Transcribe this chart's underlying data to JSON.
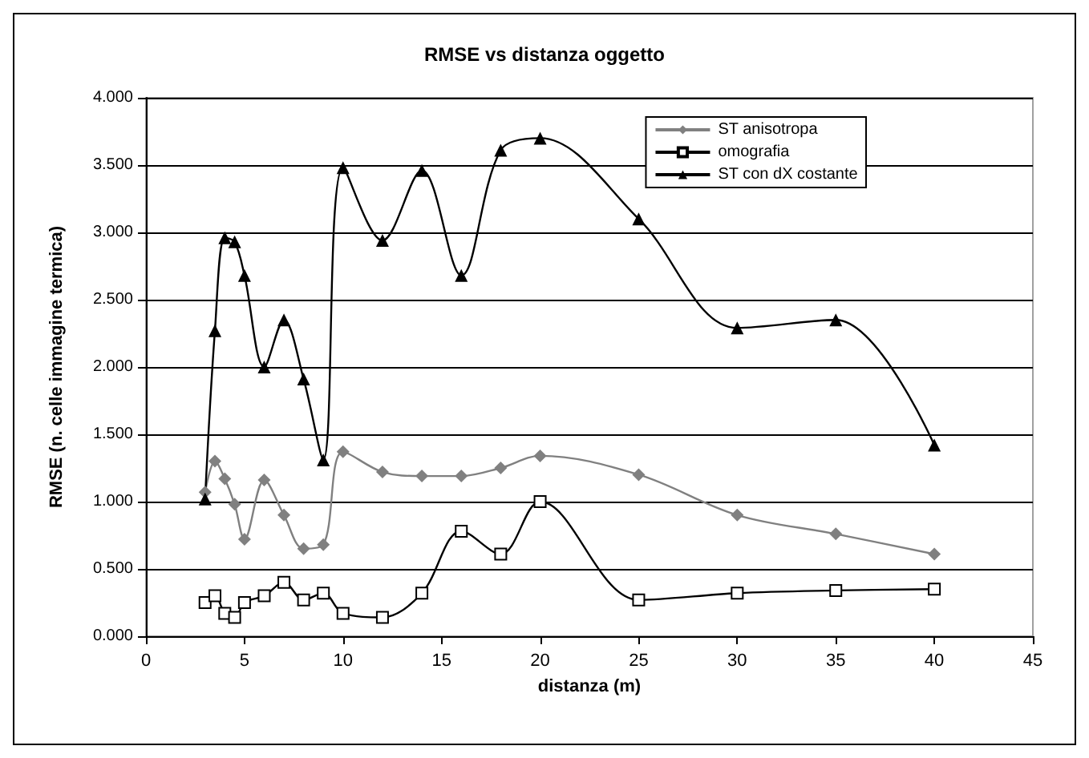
{
  "chart_data": {
    "type": "line",
    "title": "RMSE vs distanza oggetto",
    "xlabel": "distanza (m)",
    "ylabel": "RMSE (n. celle immagine termica)",
    "x": [
      3,
      3.5,
      4,
      4.5,
      5,
      6,
      7,
      8,
      9,
      10,
      12,
      14,
      16,
      18,
      20,
      25,
      30,
      35,
      40
    ],
    "series": [
      {
        "name": "ST anisotropa",
        "color": "#808080",
        "marker": "diamond",
        "values": [
          1.07,
          1.3,
          1.17,
          0.98,
          0.72,
          1.16,
          0.9,
          0.65,
          0.68,
          1.37,
          1.22,
          1.19,
          1.19,
          1.25,
          1.34,
          1.2,
          0.9,
          0.76,
          0.61
        ]
      },
      {
        "name": "omografia",
        "color": "#000000",
        "marker": "square",
        "values": [
          0.25,
          0.3,
          0.17,
          0.14,
          0.25,
          0.3,
          0.4,
          0.27,
          0.32,
          0.17,
          0.14,
          0.32,
          0.78,
          0.61,
          1.0,
          0.27,
          0.32,
          0.34,
          0.35
        ]
      },
      {
        "name": "ST con dX costante",
        "color": "#000000",
        "marker": "triangle",
        "values": [
          1.02,
          2.27,
          2.96,
          2.93,
          2.68,
          2.0,
          2.35,
          1.91,
          1.31,
          3.48,
          2.94,
          3.46,
          2.68,
          3.61,
          3.7,
          3.1,
          2.29,
          2.35,
          1.42
        ]
      }
    ],
    "xlim": [
      0,
      45
    ],
    "xticks": [
      0,
      5,
      10,
      15,
      20,
      25,
      30,
      35,
      40,
      45
    ],
    "ylim": [
      0,
      4
    ],
    "yticks": [
      {
        "value": 0,
        "label": "0.000"
      },
      {
        "value": 0.5,
        "label": "0.500"
      },
      {
        "value": 1,
        "label": "1.000"
      },
      {
        "value": 1.5,
        "label": "1.500"
      },
      {
        "value": 2,
        "label": "2.000"
      },
      {
        "value": 2.5,
        "label": "2.500"
      },
      {
        "value": 3,
        "label": "3.000"
      },
      {
        "value": 3.5,
        "label": "3.500"
      },
      {
        "value": 4,
        "label": "4.000"
      }
    ],
    "grid": "y",
    "legend": "top right",
    "line_style": "solid"
  }
}
